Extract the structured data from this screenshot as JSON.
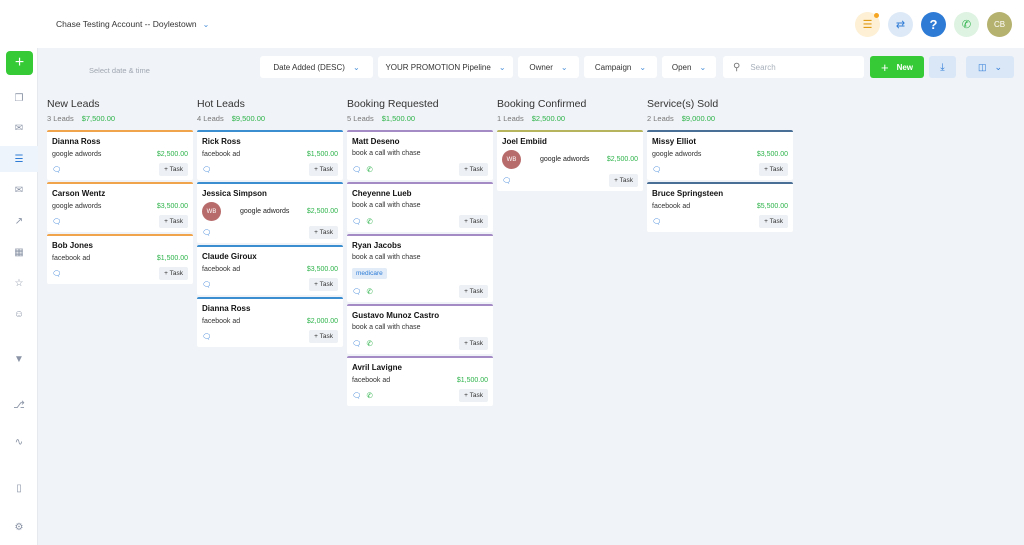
{
  "header": {
    "account": "Chase Testing Account -- Doylestown",
    "avatar_initials": "CB",
    "help_label": "?"
  },
  "toolbar": {
    "date_placeholder": "Select date & time",
    "sort_label": "Date Added (DESC)",
    "pipeline_label": "YOUR PROMOTION Pipeline",
    "owner_label": "Owner",
    "campaign_label": "Campaign",
    "status_label": "Open",
    "search_placeholder": "Search",
    "new_label": "New"
  },
  "columns": [
    {
      "title": "New Leads",
      "count": "3 Leads",
      "amount": "$7,500.00",
      "color": "#f0a44b",
      "cards": [
        {
          "name": "Dianna Ross",
          "source": "google adwords",
          "value": "$2,500.00"
        },
        {
          "name": "Carson Wentz",
          "source": "google adwords",
          "value": "$3,500.00"
        },
        {
          "name": "Bob Jones",
          "source": "facebook ad",
          "value": "$1,500.00"
        }
      ]
    },
    {
      "title": "Hot Leads",
      "count": "4 Leads",
      "amount": "$9,500.00",
      "color": "#3b8fd0",
      "cards": [
        {
          "name": "Rick Ross",
          "source": "facebook ad",
          "value": "$1,500.00"
        },
        {
          "name": "Jessica Simpson",
          "source": "google adwords",
          "value": "$2,500.00",
          "avatar": "WB"
        },
        {
          "name": "Claude Giroux",
          "source": "facebook ad",
          "value": "$3,500.00"
        },
        {
          "name": "Dianna Ross",
          "source": "facebook ad",
          "value": "$2,000.00"
        }
      ]
    },
    {
      "title": "Booking Requested",
      "count": "5 Leads",
      "amount": "$1,500.00",
      "color": "#a48bc6",
      "cards": [
        {
          "name": "Matt Deseno",
          "desc": "book a call with chase"
        },
        {
          "name": "Cheyenne Lueb",
          "desc": "book a call with chase"
        },
        {
          "name": "Ryan Jacobs",
          "desc": "book a call with chase",
          "tag": "medicare"
        },
        {
          "name": "Gustavo Munoz Castro",
          "desc": "book a call with chase"
        },
        {
          "name": "Avril Lavigne",
          "source": "facebook ad",
          "value": "$1,500.00"
        }
      ]
    },
    {
      "title": "Booking Confirmed",
      "count": "1 Leads",
      "amount": "$2,500.00",
      "color": "#b6b55e",
      "cards": [
        {
          "name": "Joel Embiid",
          "source": "google adwords",
          "value": "$2,500.00",
          "avatar": "WB"
        }
      ]
    },
    {
      "title": "Service(s) Sold",
      "count": "2 Leads",
      "amount": "$9,000.00",
      "color": "#4a6f96",
      "cards": [
        {
          "name": "Missy Elliot",
          "source": "google adwords",
          "value": "$3,500.00"
        },
        {
          "name": "Bruce Springsteen",
          "source": "facebook ad",
          "value": "$5,500.00"
        }
      ]
    }
  ],
  "task_label": "+ Task"
}
